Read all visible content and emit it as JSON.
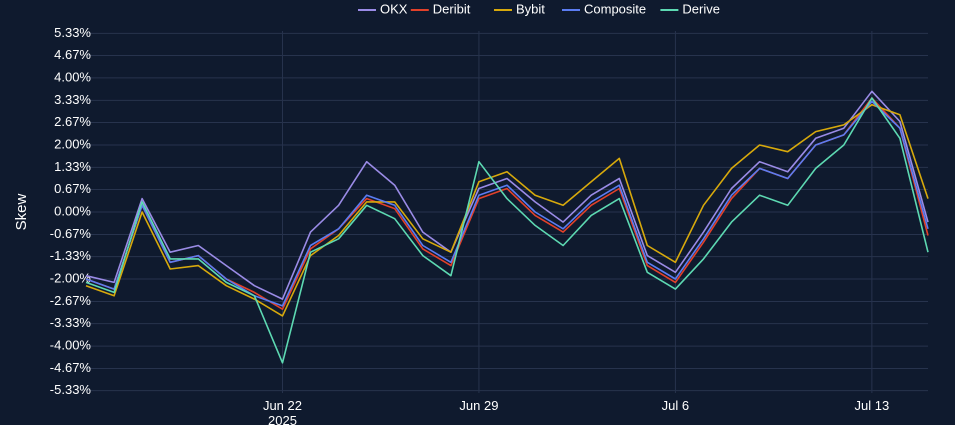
{
  "chart_data": {
    "type": "line",
    "y_label": "Skew",
    "x": [
      "2025-06-15",
      "2025-06-16",
      "2025-06-17",
      "2025-06-18",
      "2025-06-19",
      "2025-06-20",
      "2025-06-21",
      "2025-06-22",
      "2025-06-23",
      "2025-06-24",
      "2025-06-25",
      "2025-06-26",
      "2025-06-27",
      "2025-06-28",
      "2025-06-29",
      "2025-06-30",
      "2025-07-01",
      "2025-07-02",
      "2025-07-03",
      "2025-07-04",
      "2025-07-05",
      "2025-07-06",
      "2025-07-07",
      "2025-07-08",
      "2025-07-09",
      "2025-07-10",
      "2025-07-11",
      "2025-07-12",
      "2025-07-13",
      "2025-07-14",
      "2025-07-15"
    ],
    "xlim": [
      "2025-06-15",
      "2025-07-15"
    ],
    "xticks": [
      {
        "value": "2025-06-22",
        "label": "Jun 22\n2025"
      },
      {
        "value": "2025-06-29",
        "label": "Jun 29"
      },
      {
        "value": "2025-07-06",
        "label": "Jul 6"
      },
      {
        "value": "2025-07-13",
        "label": "Jul 13"
      }
    ],
    "ylim": [
      -5.4,
      5.4
    ],
    "yticks": [
      {
        "value": 5.33,
        "label": "5.33%"
      },
      {
        "value": 4.67,
        "label": "4.67%"
      },
      {
        "value": 4,
        "label": "4.00%"
      },
      {
        "value": 3.33,
        "label": "3.33%"
      },
      {
        "value": 2.67,
        "label": "2.67%"
      },
      {
        "value": 2,
        "label": "2.00%"
      },
      {
        "value": 1.33,
        "label": "1.33%"
      },
      {
        "value": 0.67,
        "label": "0.67%"
      },
      {
        "value": 0,
        "label": "0.00%"
      },
      {
        "value": -0.67,
        "label": "-0.67%"
      },
      {
        "value": -1.33,
        "label": "-1.33%"
      },
      {
        "value": -2,
        "label": "-2.00%"
      },
      {
        "value": -2.67,
        "label": "-2.67%"
      },
      {
        "value": -3.33,
        "label": "-3.33%"
      },
      {
        "value": -4,
        "label": "-4.00%"
      },
      {
        "value": -4.67,
        "label": "-4.67%"
      },
      {
        "value": -5.33,
        "label": "-5.33%"
      }
    ],
    "grid": true,
    "legend": "top",
    "series": [
      {
        "name": "OKX",
        "color": "#9a8be6",
        "values": [
          -1.9,
          -2.1,
          0.4,
          -1.2,
          -1.0,
          -1.6,
          -2.2,
          -2.6,
          -0.6,
          0.2,
          1.5,
          0.8,
          -0.6,
          -1.2,
          0.7,
          1.0,
          0.3,
          -0.3,
          0.5,
          1.0,
          -1.3,
          -1.8,
          -0.6,
          0.7,
          1.5,
          1.2,
          2.2,
          2.5,
          3.6,
          2.7,
          -0.3
        ]
      },
      {
        "name": "Deribit",
        "color": "#e2412a",
        "values": [
          -2.0,
          -2.3,
          0.2,
          -1.5,
          -1.3,
          -2.0,
          -2.4,
          -2.9,
          -1.1,
          -0.5,
          0.4,
          0.1,
          -1.1,
          -1.6,
          0.4,
          0.7,
          -0.1,
          -0.6,
          0.2,
          0.7,
          -1.6,
          -2.1,
          -0.9,
          0.4,
          1.3,
          1.0,
          2.0,
          2.3,
          3.4,
          2.5,
          -0.7
        ]
      },
      {
        "name": "Bybit",
        "color": "#d7a90c",
        "values": [
          -2.2,
          -2.5,
          0.0,
          -1.7,
          -1.6,
          -2.2,
          -2.6,
          -3.1,
          -1.3,
          -0.7,
          0.3,
          0.3,
          -0.8,
          -1.2,
          0.9,
          1.2,
          0.5,
          0.2,
          0.9,
          1.6,
          -1.0,
          -1.5,
          0.2,
          1.3,
          2.0,
          1.8,
          2.4,
          2.6,
          3.2,
          2.9,
          0.4
        ]
      },
      {
        "name": "Composite",
        "color": "#5b7cf2",
        "values": [
          -2.0,
          -2.3,
          0.2,
          -1.5,
          -1.3,
          -2.0,
          -2.5,
          -2.8,
          -1.0,
          -0.5,
          0.5,
          0.2,
          -1.0,
          -1.5,
          0.5,
          0.8,
          0.0,
          -0.5,
          0.3,
          0.8,
          -1.5,
          -2.0,
          -0.8,
          0.5,
          1.3,
          1.0,
          2.0,
          2.3,
          3.3,
          2.5,
          -0.5
        ]
      },
      {
        "name": "Derive",
        "color": "#5dd9b2",
        "values": [
          -2.1,
          -2.4,
          0.3,
          -1.4,
          -1.4,
          -2.1,
          -2.5,
          -4.5,
          -1.2,
          -0.8,
          0.2,
          -0.2,
          -1.3,
          -1.9,
          1.5,
          0.4,
          -0.4,
          -1.0,
          -0.1,
          0.4,
          -1.8,
          -2.3,
          -1.4,
          -0.3,
          0.5,
          0.2,
          1.3,
          2.0,
          3.4,
          2.2,
          -1.2
        ]
      }
    ]
  }
}
